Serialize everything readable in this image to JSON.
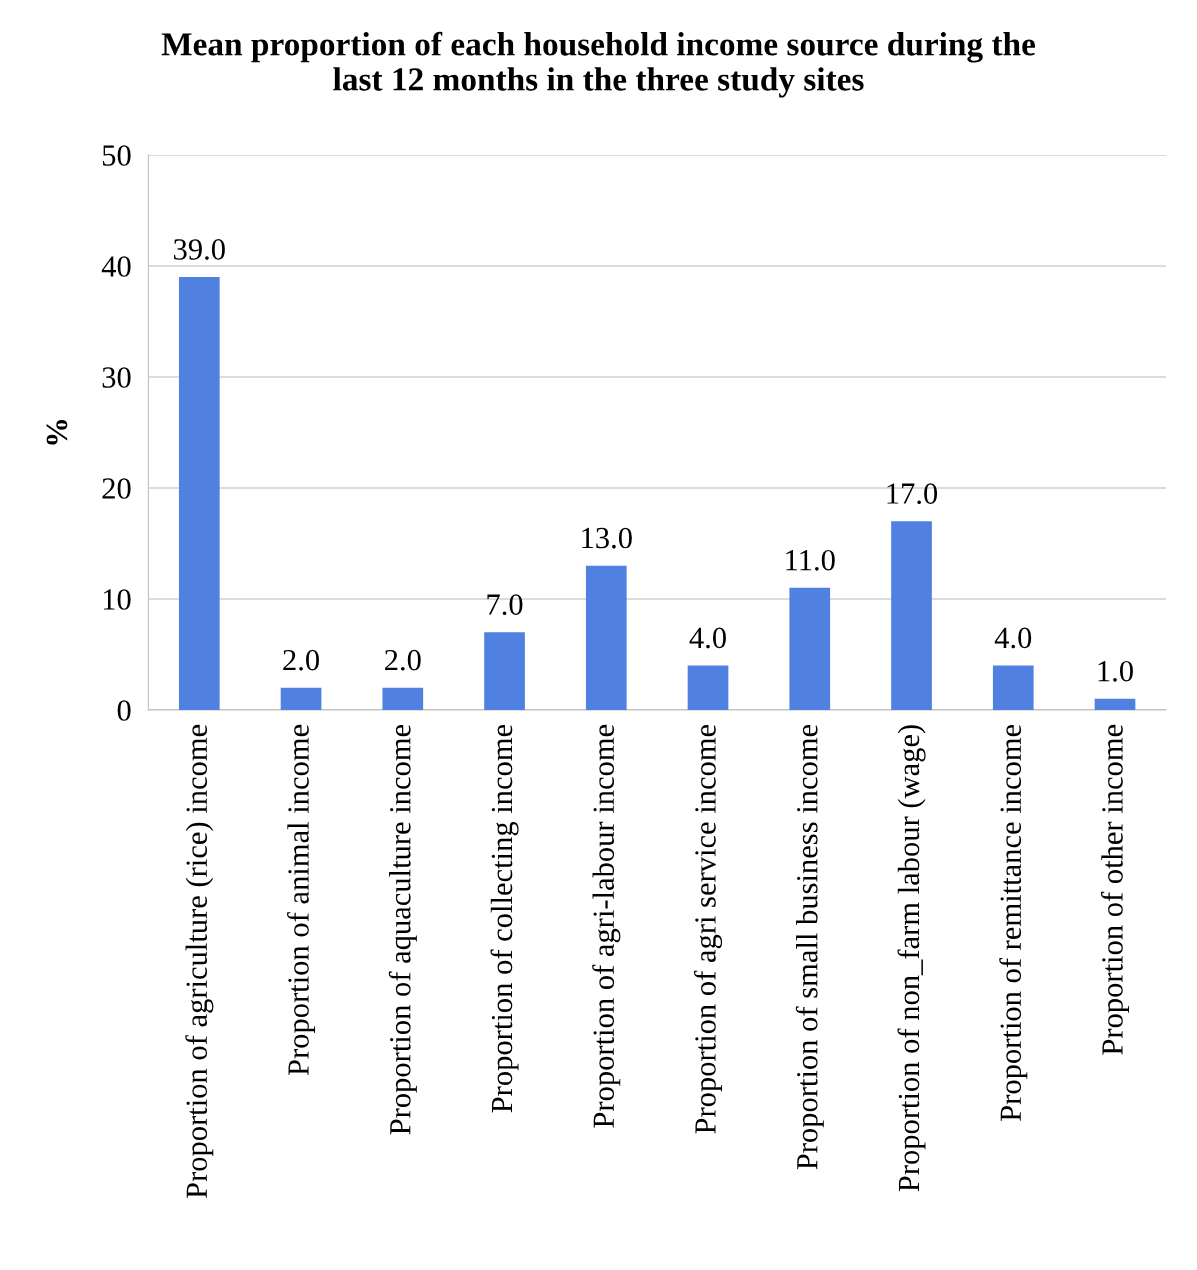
{
  "chart_data": {
    "type": "bar",
    "title": "Mean proportion of each household income source during the\nlast 12 months in the three study sites",
    "ylabel": "%",
    "categories": [
      "Proportion of agriculture (rice) income",
      "Proportion of animal income",
      "Proportion of aquaculture income",
      "Proportion of collecting income",
      "Proportion of agri-labour income",
      "Proportion of agri service income",
      "Proportion of small business income",
      "Proportion of non_farm labour (wage)",
      "Proportion of remittance income",
      "Proportion of other income"
    ],
    "values": [
      39.0,
      2.0,
      2.0,
      7.0,
      13.0,
      4.0,
      11.0,
      17.0,
      4.0,
      1.0
    ],
    "value_labels": [
      "39.0",
      "2.0",
      "2.0",
      "7.0",
      "13.0",
      "4.0",
      "11.0",
      "17.0",
      "4.0",
      "1.0"
    ],
    "color": "#5080e0",
    "ylim": [
      0,
      50
    ],
    "yticks": [
      0,
      10,
      20,
      30,
      40,
      50
    ],
    "grid": "y",
    "legend": false
  }
}
